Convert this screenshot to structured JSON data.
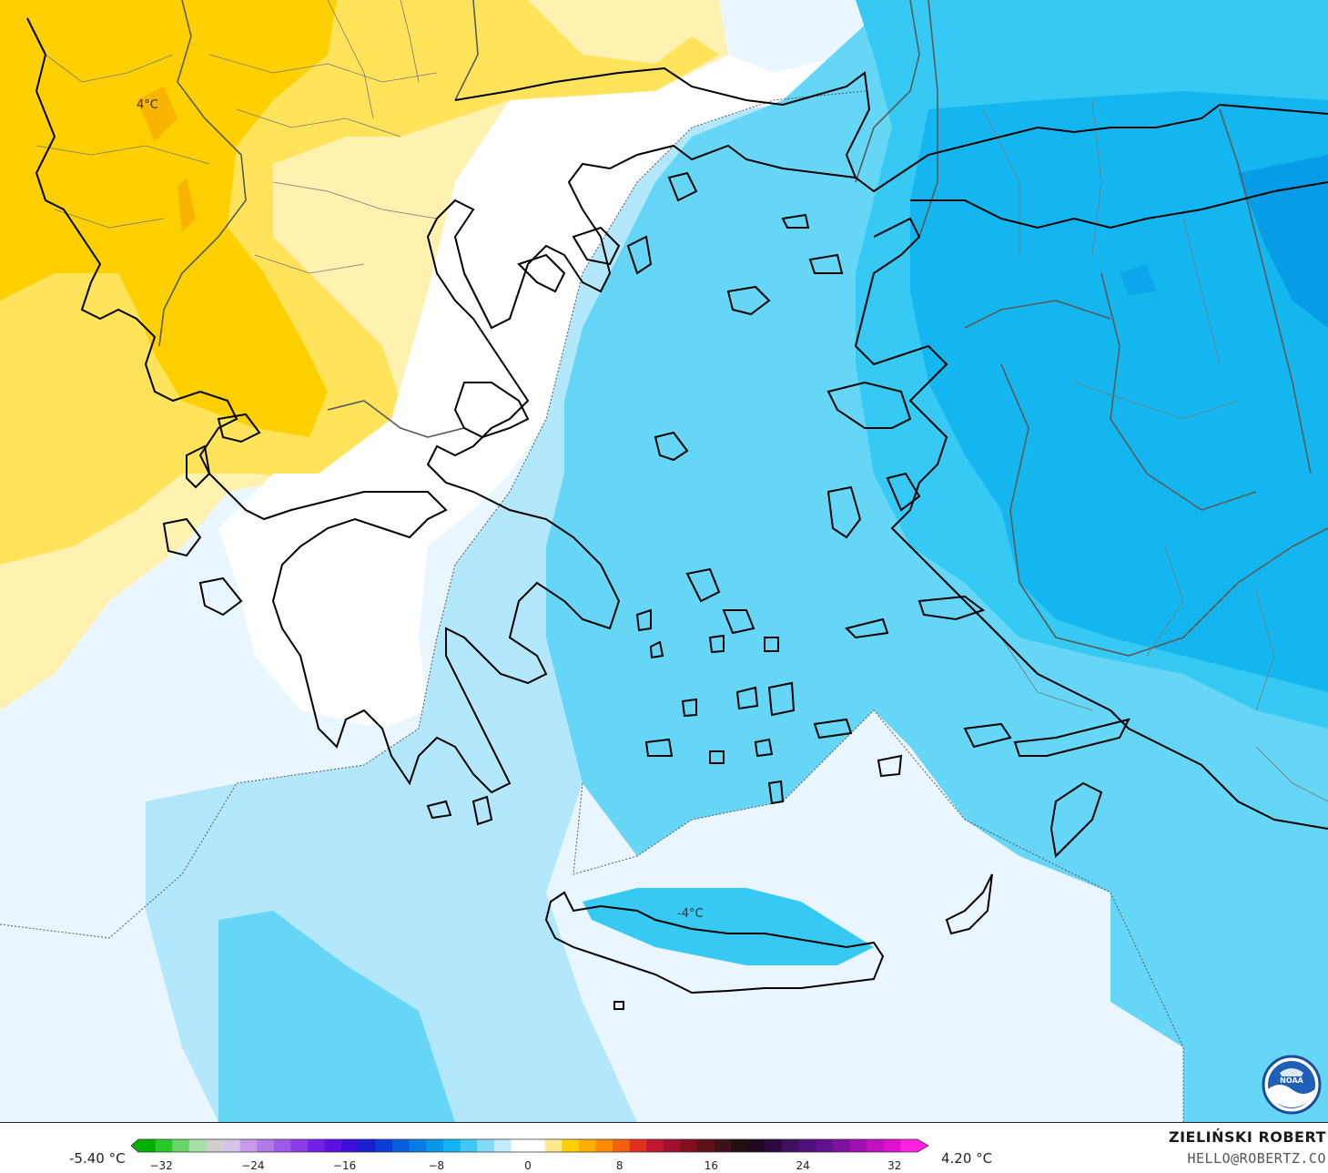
{
  "map": {
    "labels": [
      {
        "id": "label-north",
        "text": "4°C"
      },
      {
        "id": "label-crete",
        "text": "-4°C"
      }
    ],
    "colors": {
      "orange_strong": "#ffd000",
      "orange_mid": "#ffe35a",
      "yellow_light": "#fff1b0",
      "white": "#ffffff",
      "blue_pale": "#e9f6fd",
      "blue_light": "#b3e7fb",
      "blue_mid": "#66d6f6",
      "blue_strong": "#35c9f3",
      "blue_deep": "#14b6ef",
      "blue_darker": "#069ce6",
      "coast": "#000000",
      "border": "#5a5a5a"
    },
    "logo_icon": "noaa-logo-icon"
  },
  "legend": {
    "min_label": "-5.40 °C",
    "max_label": "4.20 °C",
    "ticks": [
      "−32",
      "−24",
      "−16",
      "−8",
      "0",
      "8",
      "16",
      "24",
      "32"
    ],
    "tick_values": [
      -32,
      -24,
      -16,
      -8,
      0,
      8,
      16,
      24,
      32
    ],
    "range": [
      -34,
      34
    ],
    "colors": [
      "#00b000",
      "#28c828",
      "#6ad46a",
      "#a8e0a8",
      "#cfcfcf",
      "#d9c2e8",
      "#c59ae8",
      "#b27ae8",
      "#9d5ae8",
      "#8a3ce8",
      "#7320e6",
      "#5a10e0",
      "#3a10d8",
      "#1a20d0",
      "#0a40d8",
      "#0860e0",
      "#087ce6",
      "#0898ea",
      "#10b4f0",
      "#40c8f4",
      "#80daf8",
      "#c0ecfc",
      "#ffffff",
      "#ffffff",
      "#ffe890",
      "#ffd000",
      "#ffb000",
      "#ff8a00",
      "#f06010",
      "#e03020",
      "#c01830",
      "#a01030",
      "#801020",
      "#601018",
      "#401018",
      "#201010",
      "#200820",
      "#300840",
      "#401060",
      "#501080",
      "#601090",
      "#8010a0",
      "#a010b0",
      "#c010c0",
      "#e010d0",
      "#ff20e0"
    ]
  },
  "credit": {
    "name": "ZIELIŃSKI ROBERT",
    "email": "HELLO@ROBERTZ.CO"
  }
}
